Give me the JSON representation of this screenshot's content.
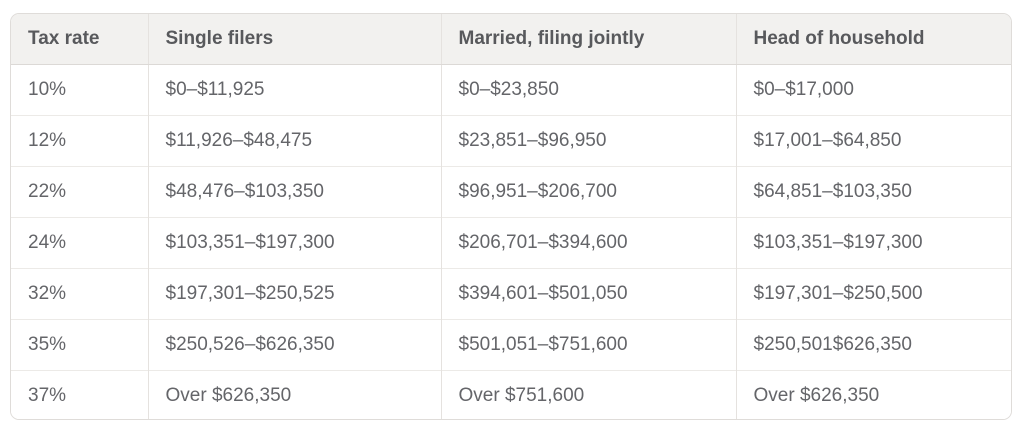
{
  "table": {
    "columns": [
      "Tax rate",
      "Single filers",
      "Married, filing jointly",
      "Head of household"
    ],
    "rows": [
      [
        "10%",
        "$0–$11,925",
        "$0–$23,850",
        "$0–$17,000"
      ],
      [
        "12%",
        "$11,926–$48,475",
        "$23,851–$96,950",
        "$17,001–$64,850"
      ],
      [
        "22%",
        "$48,476–$103,350",
        "$96,951–$206,700",
        "$64,851–$103,350"
      ],
      [
        "24%",
        "$103,351–$197,300",
        "$206,701–$394,600",
        "$103,351–$197,300"
      ],
      [
        "32%",
        "$197,301–$250,525",
        "$394,601–$501,050",
        "$197,301–$250,500"
      ],
      [
        "35%",
        "$250,526–$626,350",
        "$501,051–$751,600",
        "$250,501$626,350"
      ],
      [
        "37%",
        "Over $626,350",
        "Over $751,600",
        "Over $626,350"
      ]
    ]
  },
  "colors": {
    "header_background": "#f2f1ef",
    "row_background": "#ffffff",
    "outer_border": "#dfdcd9",
    "header_text": "#58595c",
    "body_text": "#646569"
  }
}
